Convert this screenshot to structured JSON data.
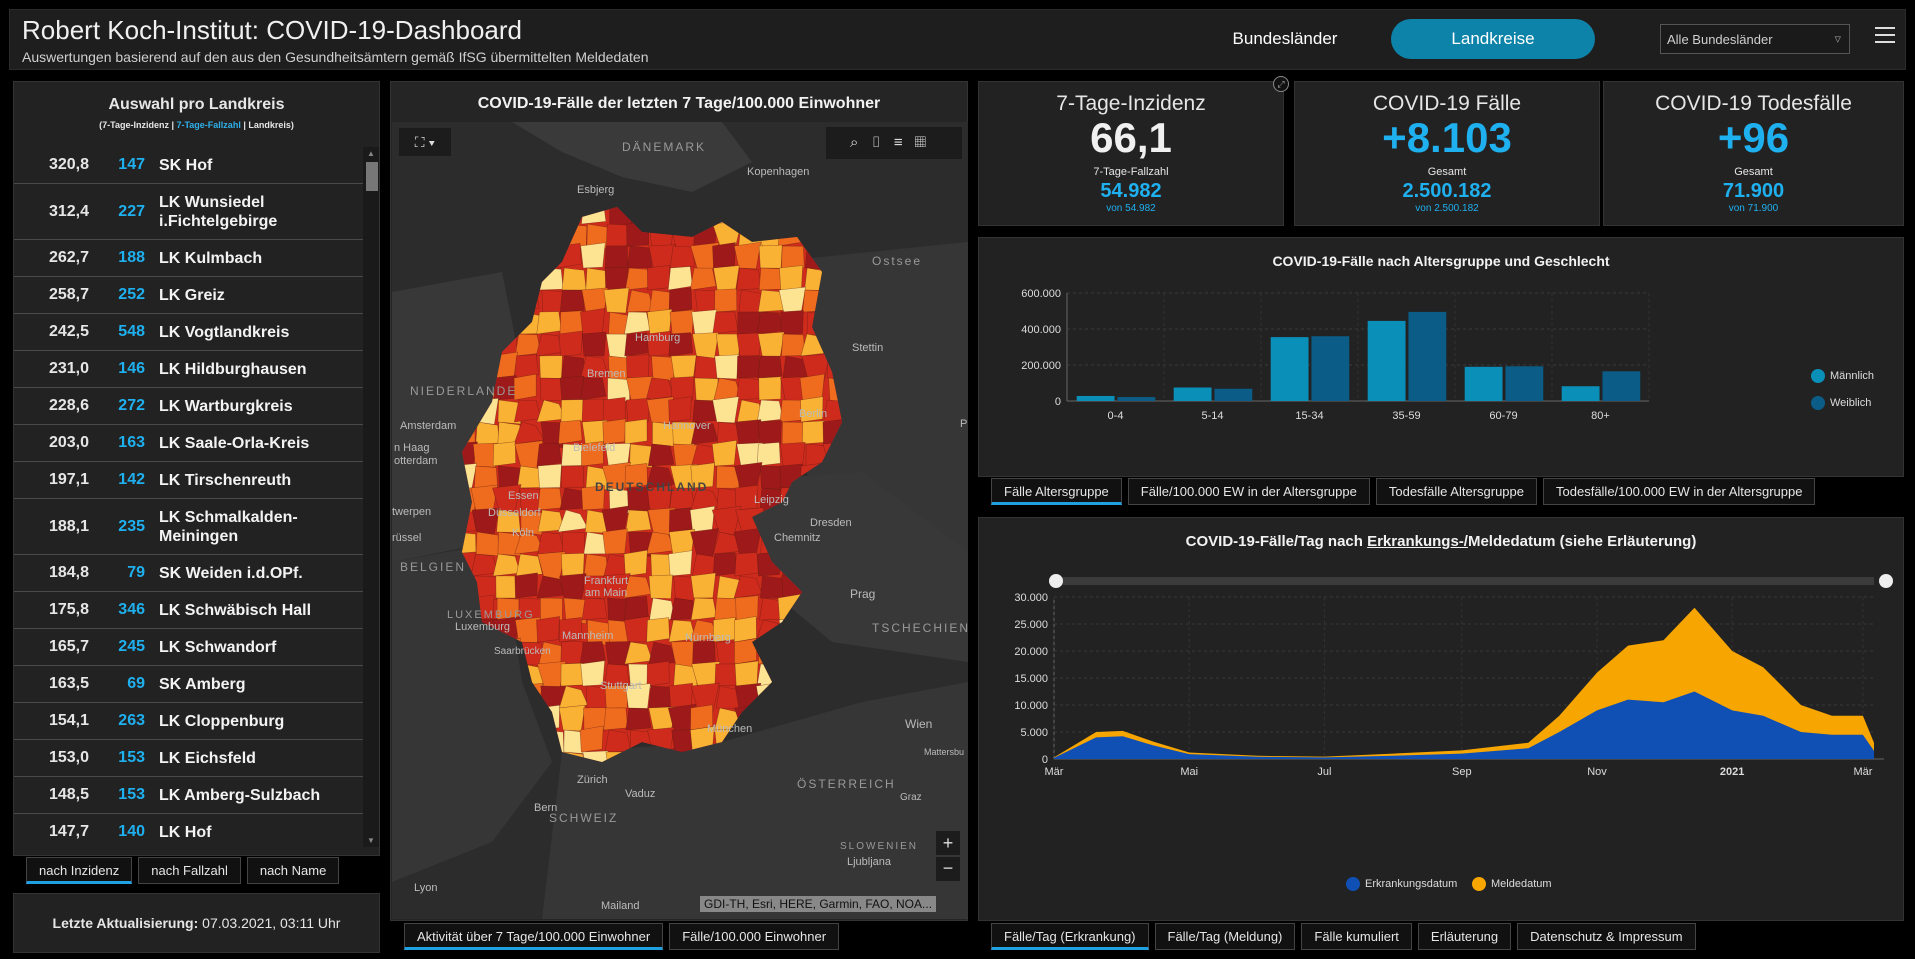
{
  "header": {
    "title": "Robert Koch-Institut: COVID-19-Dashboard",
    "subtitle": "Auswertungen basierend auf den aus den Gesundheitsämtern gemäß IfSG übermittelten Meldedaten",
    "nav_bundeslaender": "Bundesländer",
    "nav_landkreise": "Landkreise",
    "select_value": "Alle Bundesländer"
  },
  "list": {
    "title": "Auswahl pro Landkreis",
    "sub_open": "(7-Tage-Inzidenz | ",
    "sub_blue": "7-Tage-Fallzahl",
    "sub_close": " | Landkreis)",
    "rows": [
      {
        "inc": "320,8",
        "cnt": "147",
        "name": "SK Hof"
      },
      {
        "inc": "312,4",
        "cnt": "227",
        "name": "LK Wunsiedel i.Fichtelgebirge"
      },
      {
        "inc": "262,7",
        "cnt": "188",
        "name": "LK Kulmbach"
      },
      {
        "inc": "258,7",
        "cnt": "252",
        "name": "LK Greiz"
      },
      {
        "inc": "242,5",
        "cnt": "548",
        "name": "LK Vogtlandkreis"
      },
      {
        "inc": "231,0",
        "cnt": "146",
        "name": "LK Hildburghausen"
      },
      {
        "inc": "228,6",
        "cnt": "272",
        "name": "LK Wartburgkreis"
      },
      {
        "inc": "203,0",
        "cnt": "163",
        "name": "LK Saale-Orla-Kreis"
      },
      {
        "inc": "197,1",
        "cnt": "142",
        "name": "LK Tirschenreuth"
      },
      {
        "inc": "188,1",
        "cnt": "235",
        "name": "LK Schmalkalden-Meiningen"
      },
      {
        "inc": "184,8",
        "cnt": "79",
        "name": "SK Weiden i.d.OPf."
      },
      {
        "inc": "175,8",
        "cnt": "346",
        "name": "LK Schwäbisch Hall"
      },
      {
        "inc": "165,7",
        "cnt": "245",
        "name": "LK Schwandorf"
      },
      {
        "inc": "163,5",
        "cnt": "69",
        "name": "SK Amberg"
      },
      {
        "inc": "154,1",
        "cnt": "263",
        "name": "LK Cloppenburg"
      },
      {
        "inc": "153,0",
        "cnt": "153",
        "name": "LK Eichsfeld"
      },
      {
        "inc": "148,5",
        "cnt": "153",
        "name": "LK Amberg-Sulzbach"
      },
      {
        "inc": "147,7",
        "cnt": "140",
        "name": "LK Hof"
      }
    ],
    "tabs": [
      "nach Inzidenz",
      "nach Fallzahl",
      "nach Name"
    ]
  },
  "update": {
    "label": "Letzte Aktualisierung:",
    "value": "07.03.2021, 03:11 Uhr"
  },
  "map": {
    "title": "COVID-19-Fälle der letzten 7 Tage/100.000 Einwohner",
    "attribution": "GDI-TH, Esri, HERE, Garmin, FAO, NOA...",
    "tabs": [
      "Aktivität über 7 Tage/100.000 Einwohner",
      "Fälle/100.000 Einwohner"
    ],
    "labels": {
      "daenemark": "DÄNEMARK",
      "kopenhagen": "Kopenhagen",
      "esbjerg": "Esbjerg",
      "ostsee": "Ostsee",
      "hamburg": "Hamburg",
      "stettin": "Stettin",
      "bremen": "Bremen",
      "niederlande": "NIEDERLANDE",
      "amsterdam": "Amsterdam",
      "hannover": "Hannover",
      "berlin": "Berlin",
      "denhaag": "n Haag",
      "rotterdam": "otterdam",
      "bielefeld": "Bielefeld",
      "deutschland": "DEUTSCHLAND",
      "essen": "Essen",
      "leipzig": "Leipzig",
      "duesseldorf": "Düsseldorf",
      "twerpen": "twerpen",
      "koeln": "Köln",
      "dresden": "Dresden",
      "ruessel": "rüssel",
      "chemnitz": "Chemnitz",
      "belgien": "BELGIEN",
      "frankfurt": "Frankfurt am Main",
      "prag": "Prag",
      "luxemburg_c": "LUXEMBURG",
      "luxemburg": "Luxemburg",
      "tschechien": "TSCHECHIEN",
      "mannheim": "Mannheim",
      "nuernberg": "Nürnberg",
      "saarbruecken": "Saarbrücken",
      "stuttgart": "Stuttgart",
      "wien": "Wien",
      "muenchen": "München",
      "mattersburg": "Mattersbu",
      "oesterreich": "ÖSTERREICH",
      "zuerich": "Zürich",
      "vaduz": "Vaduz",
      "graz": "Graz",
      "bern": "Bern",
      "schweiz": "SCHWEIZ",
      "slowenien": "SLOWENIEN",
      "ljubljana": "Ljubljana",
      "lyon": "Lyon",
      "mailand": "Mailand",
      "p": "P"
    },
    "colors": {
      "ocean": "#2c2c2c",
      "land": "#3a3a3a",
      "dark_red": "#9e1a1a",
      "red": "#cf2b1d",
      "orange": "#ef6c1f",
      "yellow_orange": "#f9b234",
      "light_yellow": "#fde493"
    }
  },
  "kpis": [
    {
      "title": "7-Tage-Inzidenz",
      "value": "66,1",
      "sub": "7-Tage-Fallzahl",
      "sub_value": "54.982",
      "sub_small": "von 54.982",
      "value_color": "#f0f0f0"
    },
    {
      "title": "COVID-19 Fälle",
      "value": "+8.103",
      "sub": "Gesamt",
      "sub_value": "2.500.182",
      "sub_small": "von 2.500.182",
      "value_color": "#1fb0ef"
    },
    {
      "title": "COVID-19 Todesfälle",
      "value": "+96",
      "sub": "Gesamt",
      "sub_value": "71.900",
      "sub_small": "von 71.900",
      "value_color": "#1fb0ef"
    }
  ],
  "age_chart": {
    "title": "COVID-19-Fälle nach Altersgruppe und Geschlecht",
    "tabs": [
      "Fälle Altersgruppe",
      "Fälle/100.000 EW in der Altersgruppe",
      "Todesfälle Altersgruppe",
      "Todesfälle/100.000 EW in der Altersgruppe"
    ],
    "legend_m": "Männlich",
    "legend_w": "Weiblich"
  },
  "daily_chart": {
    "title_pre": "COVID-19-Fälle/Tag nach ",
    "title_u": "Erkrankungs-/",
    "title_post": "Meldedatum (siehe Erläuterung)",
    "legend_e": "Erkrankungsdatum",
    "legend_m": "Meldedatum",
    "tabs": [
      "Fälle/Tag (Erkrankung)",
      "Fälle/Tag (Meldung)",
      "Fälle kumuliert",
      "Erläuterung",
      "Datenschutz & Impressum"
    ]
  },
  "chart_data": [
    {
      "type": "bar",
      "title": "COVID-19-Fälle nach Altersgruppe und Geschlecht",
      "categories": [
        "0-4",
        "5-14",
        "15-34",
        "35-59",
        "60-79",
        "80+"
      ],
      "series": [
        {
          "name": "Männlich",
          "color": "#0a8fb8",
          "values": [
            28000,
            75000,
            355000,
            445000,
            190000,
            82000
          ]
        },
        {
          "name": "Weiblich",
          "color": "#0b5c86",
          "values": [
            22000,
            68000,
            360000,
            495000,
            193000,
            165000
          ]
        }
      ],
      "ylim": [
        0,
        600000
      ],
      "yticks": [
        "0",
        "200.000",
        "400.000",
        "600.000"
      ],
      "grid": true,
      "legend": "right"
    },
    {
      "type": "area",
      "title": "COVID-19-Fälle/Tag nach Erkrankungs-/Meldedatum (siehe Erläuterung)",
      "xticks": [
        "Mär",
        "Mai",
        "Jul",
        "Sep",
        "Nov",
        "2021",
        "Mär"
      ],
      "yticks": [
        "0",
        "5.000",
        "10.000",
        "15.000",
        "20.000",
        "25.000",
        "30.000"
      ],
      "ylim": [
        0,
        30000
      ],
      "series": [
        {
          "name": "Erkrankungsdatum",
          "color": "#1050b4",
          "x": [
            "2020-03-01",
            "2020-03-20",
            "2020-04-01",
            "2020-04-15",
            "2020-05-01",
            "2020-06-01",
            "2020-07-01",
            "2020-08-01",
            "2020-09-01",
            "2020-10-01",
            "2020-10-15",
            "2020-11-01",
            "2020-11-15",
            "2020-12-01",
            "2020-12-15",
            "2021-01-01",
            "2021-01-15",
            "2021-02-01",
            "2021-02-15",
            "2021-03-01",
            "2021-03-06"
          ],
          "values": [
            200,
            4000,
            4200,
            2500,
            900,
            400,
            300,
            600,
            1000,
            2000,
            5000,
            9000,
            11000,
            10500,
            12500,
            9000,
            8000,
            5000,
            4500,
            4500,
            1500
          ]
        },
        {
          "name": "Meldedatum",
          "color": "#f7a500",
          "x": [
            "2020-03-01",
            "2020-03-20",
            "2020-04-01",
            "2020-04-15",
            "2020-05-01",
            "2020-06-01",
            "2020-07-01",
            "2020-08-01",
            "2020-09-01",
            "2020-10-01",
            "2020-10-15",
            "2020-11-01",
            "2020-11-15",
            "2020-12-01",
            "2020-12-15",
            "2021-01-01",
            "2021-01-15",
            "2021-02-01",
            "2021-02-15",
            "2021-03-01",
            "2021-03-06"
          ],
          "values": [
            300,
            5000,
            5200,
            3200,
            1200,
            600,
            450,
            1000,
            1600,
            3000,
            8000,
            16000,
            21000,
            22000,
            28000,
            20000,
            17000,
            10000,
            8000,
            8000,
            3000
          ]
        }
      ],
      "legend": "bottom"
    }
  ]
}
